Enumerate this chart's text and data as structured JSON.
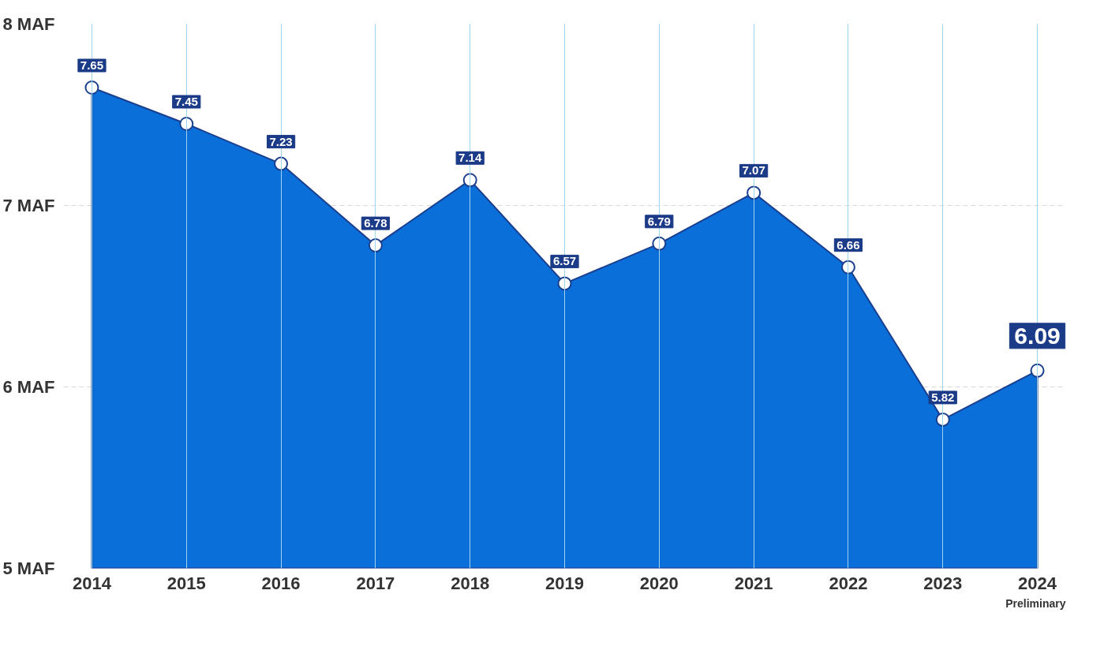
{
  "chart_data": {
    "type": "area",
    "categories": [
      "2014",
      "2015",
      "2016",
      "2017",
      "2018",
      "2019",
      "2020",
      "2021",
      "2022",
      "2023",
      "2024"
    ],
    "values": [
      7.65,
      7.45,
      7.23,
      6.78,
      7.14,
      6.57,
      6.79,
      7.07,
      6.66,
      5.82,
      6.09
    ],
    "color": "#0a6fd8",
    "ylim": [
      5,
      8
    ],
    "yticks": [
      {
        "value": 5,
        "label": "5 MAF"
      },
      {
        "value": 6,
        "label": "6 MAF"
      },
      {
        "value": 7,
        "label": "7 MAF"
      },
      {
        "value": 8,
        "label": "8 MAF"
      }
    ],
    "grid": true,
    "marker": "circle",
    "data_labels": true,
    "annotations": [
      "Preliminary"
    ]
  }
}
